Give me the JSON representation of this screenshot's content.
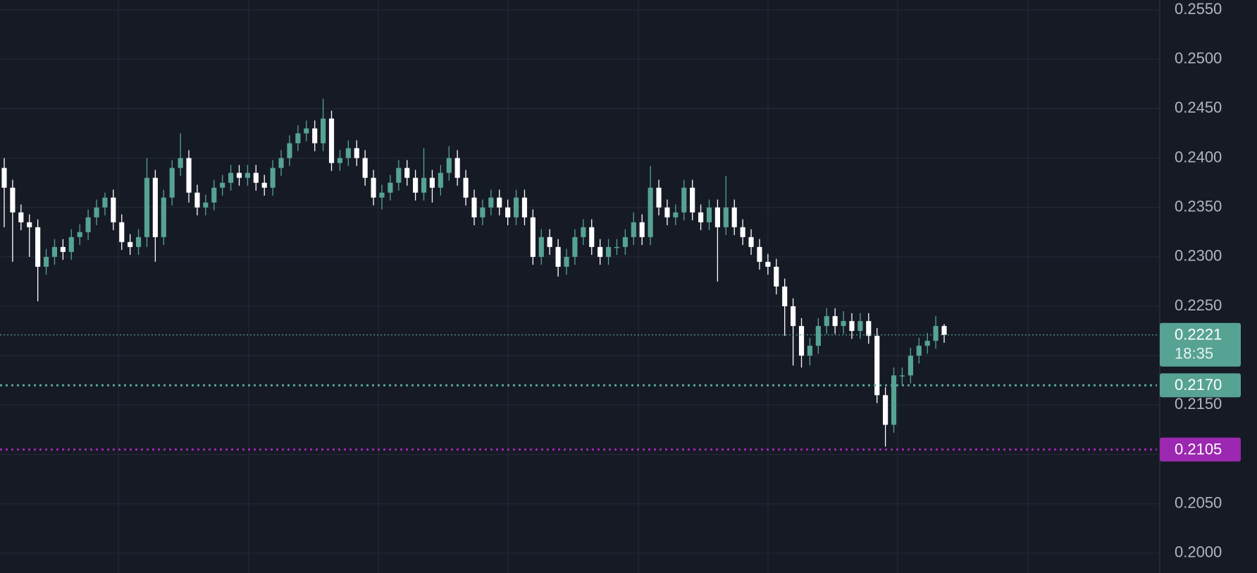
{
  "chart_data": {
    "type": "candlestick",
    "open": [
      0.239,
      0.237,
      0.2345,
      0.2335,
      0.233,
      0.229,
      0.23,
      0.231,
      0.2305,
      0.232,
      0.2325,
      0.234,
      0.235,
      0.236,
      0.2335,
      0.2315,
      0.231,
      0.232,
      0.238,
      0.232,
      0.236,
      0.239,
      0.24,
      0.2365,
      0.235,
      0.2355,
      0.237,
      0.2375,
      0.2385,
      0.238,
      0.2385,
      0.2375,
      0.237,
      0.239,
      0.24,
      0.2415,
      0.2425,
      0.243,
      0.2415,
      0.244,
      0.2395,
      0.24,
      0.241,
      0.24,
      0.238,
      0.236,
      0.2365,
      0.2375,
      0.239,
      0.238,
      0.2365,
      0.238,
      0.237,
      0.2385,
      0.24,
      0.238,
      0.236,
      0.234,
      0.235,
      0.236,
      0.235,
      0.234,
      0.236,
      0.234,
      0.23,
      0.232,
      0.231,
      0.229,
      0.23,
      0.232,
      0.233,
      0.231,
      0.23,
      0.231,
      0.231,
      0.232,
      0.2335,
      0.232,
      0.237,
      0.235,
      0.234,
      0.2345,
      0.237,
      0.2345,
      0.2335,
      0.235,
      0.233,
      0.235,
      0.233,
      0.232,
      0.231,
      0.2295,
      0.229,
      0.227,
      0.225,
      0.223,
      0.22,
      0.221,
      0.223,
      0.224,
      0.223,
      0.2235,
      0.2225,
      0.2235,
      0.222,
      0.216,
      0.213,
      0.218,
      0.218,
      0.22,
      0.221,
      0.2215,
      0.223
    ],
    "high": [
      0.24,
      0.2378,
      0.2353,
      0.2343,
      0.2338,
      0.2308,
      0.2318,
      0.2318,
      0.2328,
      0.2333,
      0.2348,
      0.2358,
      0.2365,
      0.2368,
      0.2343,
      0.2323,
      0.2328,
      0.24,
      0.2388,
      0.2368,
      0.2398,
      0.2425,
      0.2408,
      0.2373,
      0.2363,
      0.2378,
      0.2383,
      0.2393,
      0.2393,
      0.2393,
      0.2393,
      0.2383,
      0.2398,
      0.2408,
      0.2423,
      0.2433,
      0.2438,
      0.2438,
      0.246,
      0.2448,
      0.2408,
      0.2418,
      0.2418,
      0.2408,
      0.2388,
      0.2373,
      0.2383,
      0.2398,
      0.2398,
      0.2388,
      0.241,
      0.2388,
      0.2393,
      0.2412,
      0.2408,
      0.2388,
      0.2368,
      0.2358,
      0.2368,
      0.2368,
      0.2358,
      0.2368,
      0.2368,
      0.2348,
      0.2328,
      0.2328,
      0.2318,
      0.2308,
      0.2328,
      0.2338,
      0.2338,
      0.2318,
      0.2318,
      0.2318,
      0.2328,
      0.2345,
      0.2343,
      0.2392,
      0.2378,
      0.2358,
      0.2353,
      0.2378,
      0.2378,
      0.2353,
      0.2358,
      0.2358,
      0.2382,
      0.2358,
      0.2338,
      0.2328,
      0.2318,
      0.2303,
      0.2298,
      0.2278,
      0.2258,
      0.2238,
      0.2218,
      0.2238,
      0.2248,
      0.2248,
      0.2245,
      0.2243,
      0.2243,
      0.2243,
      0.2228,
      0.2168,
      0.2188,
      0.2188,
      0.2208,
      0.2218,
      0.2223,
      0.224,
      0.2232
    ],
    "low": [
      0.233,
      0.2295,
      0.2327,
      0.23,
      0.2255,
      0.2282,
      0.2292,
      0.2297,
      0.2297,
      0.2312,
      0.2317,
      0.2332,
      0.2342,
      0.2327,
      0.2307,
      0.2302,
      0.2302,
      0.231,
      0.2295,
      0.2312,
      0.2352,
      0.2382,
      0.2355,
      0.2342,
      0.2342,
      0.2347,
      0.2362,
      0.2367,
      0.2372,
      0.2372,
      0.2367,
      0.2362,
      0.2362,
      0.2382,
      0.2392,
      0.2407,
      0.2417,
      0.2407,
      0.2407,
      0.2387,
      0.2387,
      0.2392,
      0.2392,
      0.2372,
      0.2352,
      0.2348,
      0.2357,
      0.2367,
      0.2372,
      0.2357,
      0.2357,
      0.2355,
      0.2362,
      0.2377,
      0.2372,
      0.2352,
      0.2332,
      0.2332,
      0.2342,
      0.2342,
      0.2332,
      0.2332,
      0.2332,
      0.2292,
      0.2292,
      0.2302,
      0.228,
      0.2282,
      0.2292,
      0.2312,
      0.2302,
      0.2292,
      0.2292,
      0.2302,
      0.2302,
      0.2312,
      0.2312,
      0.2312,
      0.2342,
      0.2332,
      0.2332,
      0.2337,
      0.2337,
      0.2327,
      0.2327,
      0.2275,
      0.2322,
      0.2322,
      0.2312,
      0.2302,
      0.2287,
      0.2282,
      0.2262,
      0.222,
      0.219,
      0.2188,
      0.219,
      0.2202,
      0.2222,
      0.2222,
      0.2222,
      0.2217,
      0.2217,
      0.2212,
      0.2152,
      0.2108,
      0.2122,
      0.217,
      0.2172,
      0.2192,
      0.2202,
      0.2207,
      0.2213
    ],
    "close": [
      0.237,
      0.2345,
      0.2335,
      0.233,
      0.229,
      0.23,
      0.231,
      0.2305,
      0.232,
      0.2325,
      0.234,
      0.235,
      0.236,
      0.2335,
      0.2315,
      0.231,
      0.232,
      0.238,
      0.232,
      0.236,
      0.239,
      0.24,
      0.2365,
      0.235,
      0.2355,
      0.237,
      0.2375,
      0.2385,
      0.238,
      0.2385,
      0.2375,
      0.237,
      0.239,
      0.24,
      0.2415,
      0.2425,
      0.243,
      0.2415,
      0.244,
      0.2395,
      0.24,
      0.241,
      0.24,
      0.238,
      0.236,
      0.2365,
      0.2375,
      0.239,
      0.238,
      0.2365,
      0.238,
      0.237,
      0.2385,
      0.24,
      0.238,
      0.236,
      0.234,
      0.235,
      0.236,
      0.235,
      0.234,
      0.236,
      0.234,
      0.23,
      0.232,
      0.231,
      0.229,
      0.23,
      0.232,
      0.233,
      0.231,
      0.23,
      0.231,
      0.231,
      0.232,
      0.2335,
      0.232,
      0.237,
      0.235,
      0.234,
      0.2345,
      0.237,
      0.2345,
      0.2335,
      0.235,
      0.233,
      0.235,
      0.233,
      0.232,
      0.231,
      0.2295,
      0.229,
      0.227,
      0.225,
      0.223,
      0.22,
      0.221,
      0.223,
      0.224,
      0.223,
      0.2235,
      0.2225,
      0.2235,
      0.222,
      0.216,
      0.213,
      0.218,
      0.218,
      0.22,
      0.221,
      0.2215,
      0.223,
      0.2221
    ],
    "up_color": "#56a394",
    "down_color": "#ffffff",
    "ylim": [
      0.198,
      0.256
    ],
    "yticks": [
      {
        "value": 0.2,
        "label": "0.2000"
      },
      {
        "value": 0.205,
        "label": "0.2050"
      },
      {
        "value": 0.21,
        "label": "0.2100"
      },
      {
        "value": 0.215,
        "label": "0.2150"
      },
      {
        "value": 0.22,
        "label": "0.2200"
      },
      {
        "value": 0.225,
        "label": "0.2250"
      },
      {
        "value": 0.23,
        "label": "0.2300"
      },
      {
        "value": 0.235,
        "label": "0.2350"
      },
      {
        "value": 0.24,
        "label": "0.2400"
      },
      {
        "value": 0.245,
        "label": "0.2450"
      },
      {
        "value": 0.25,
        "label": "0.2500"
      },
      {
        "value": 0.255,
        "label": "0.2550"
      }
    ],
    "grid": true,
    "price_lines": [
      {
        "value": 0.2221,
        "color": "#56a394",
        "countdown": "18:35"
      },
      {
        "value": 0.217,
        "label": "0.2170",
        "color": "#56a394"
      },
      {
        "value": 0.2105,
        "color": "#9c27b0"
      }
    ]
  }
}
